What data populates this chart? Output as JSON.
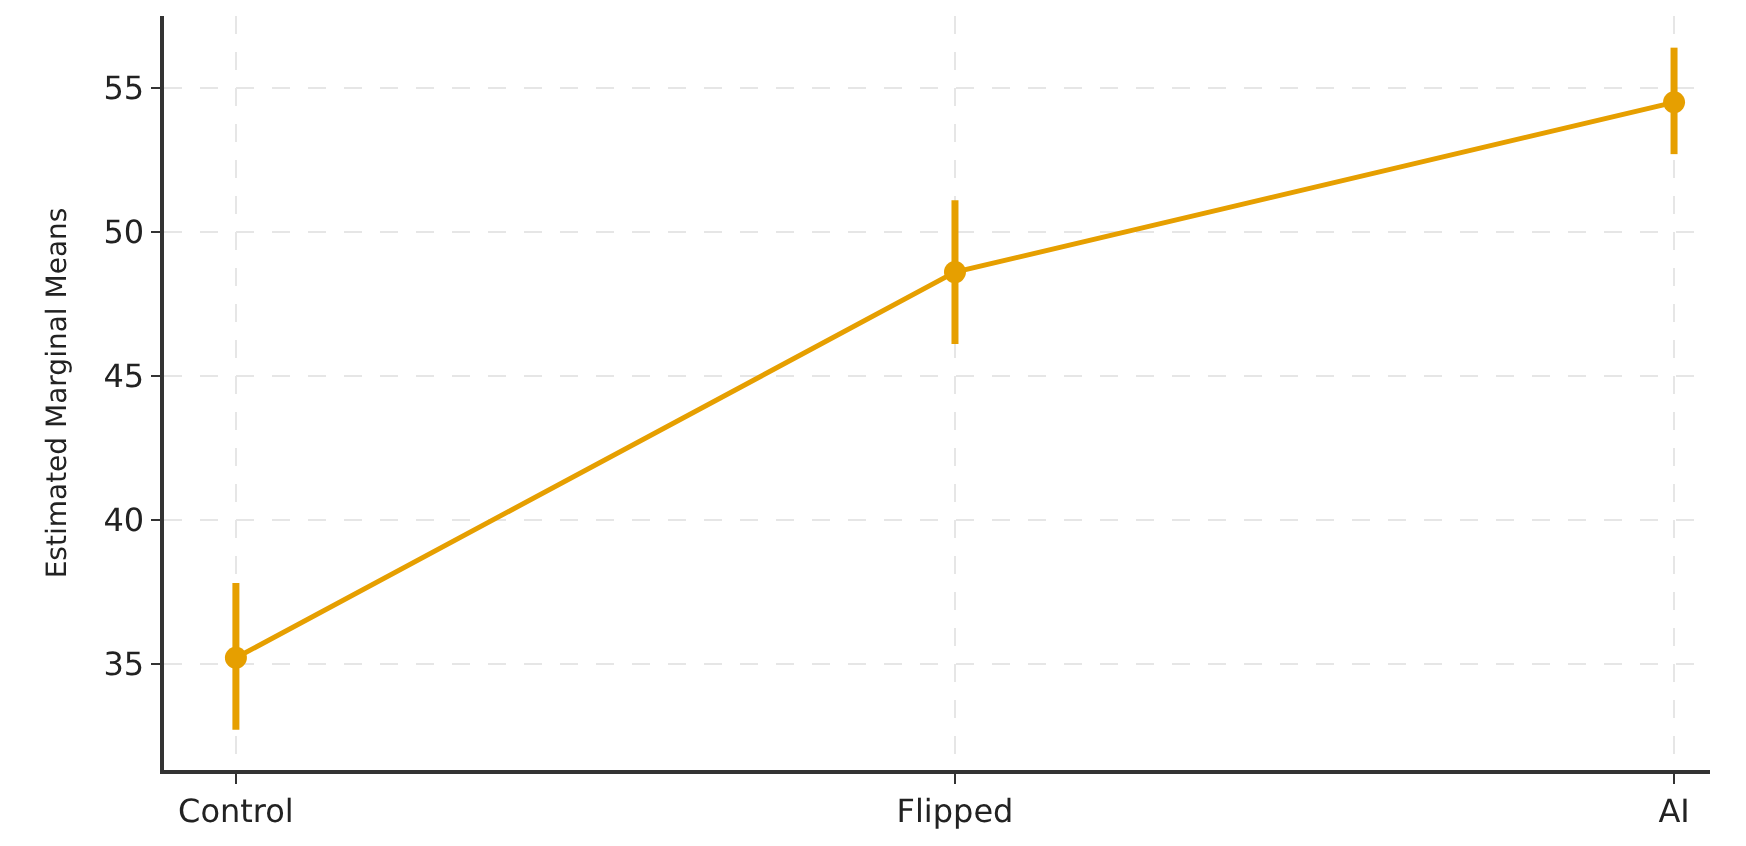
{
  "chart_data": {
    "type": "line",
    "ylabel": "Estimated Marginal Means",
    "categories": [
      "Control",
      "Flipped",
      "AI"
    ],
    "series": [
      {
        "color": "#e69f00",
        "values": [
          35.2,
          48.6,
          54.5
        ],
        "errors": [
          [
            32.7,
            37.8
          ],
          [
            46.1,
            51.1
          ],
          [
            52.7,
            56.4
          ]
        ]
      }
    ],
    "ylim": [
      31.3,
      57.5
    ],
    "yticks": [
      35,
      40,
      45,
      50,
      55
    ],
    "grid": true,
    "marker": "circle",
    "line_style": "solid"
  }
}
